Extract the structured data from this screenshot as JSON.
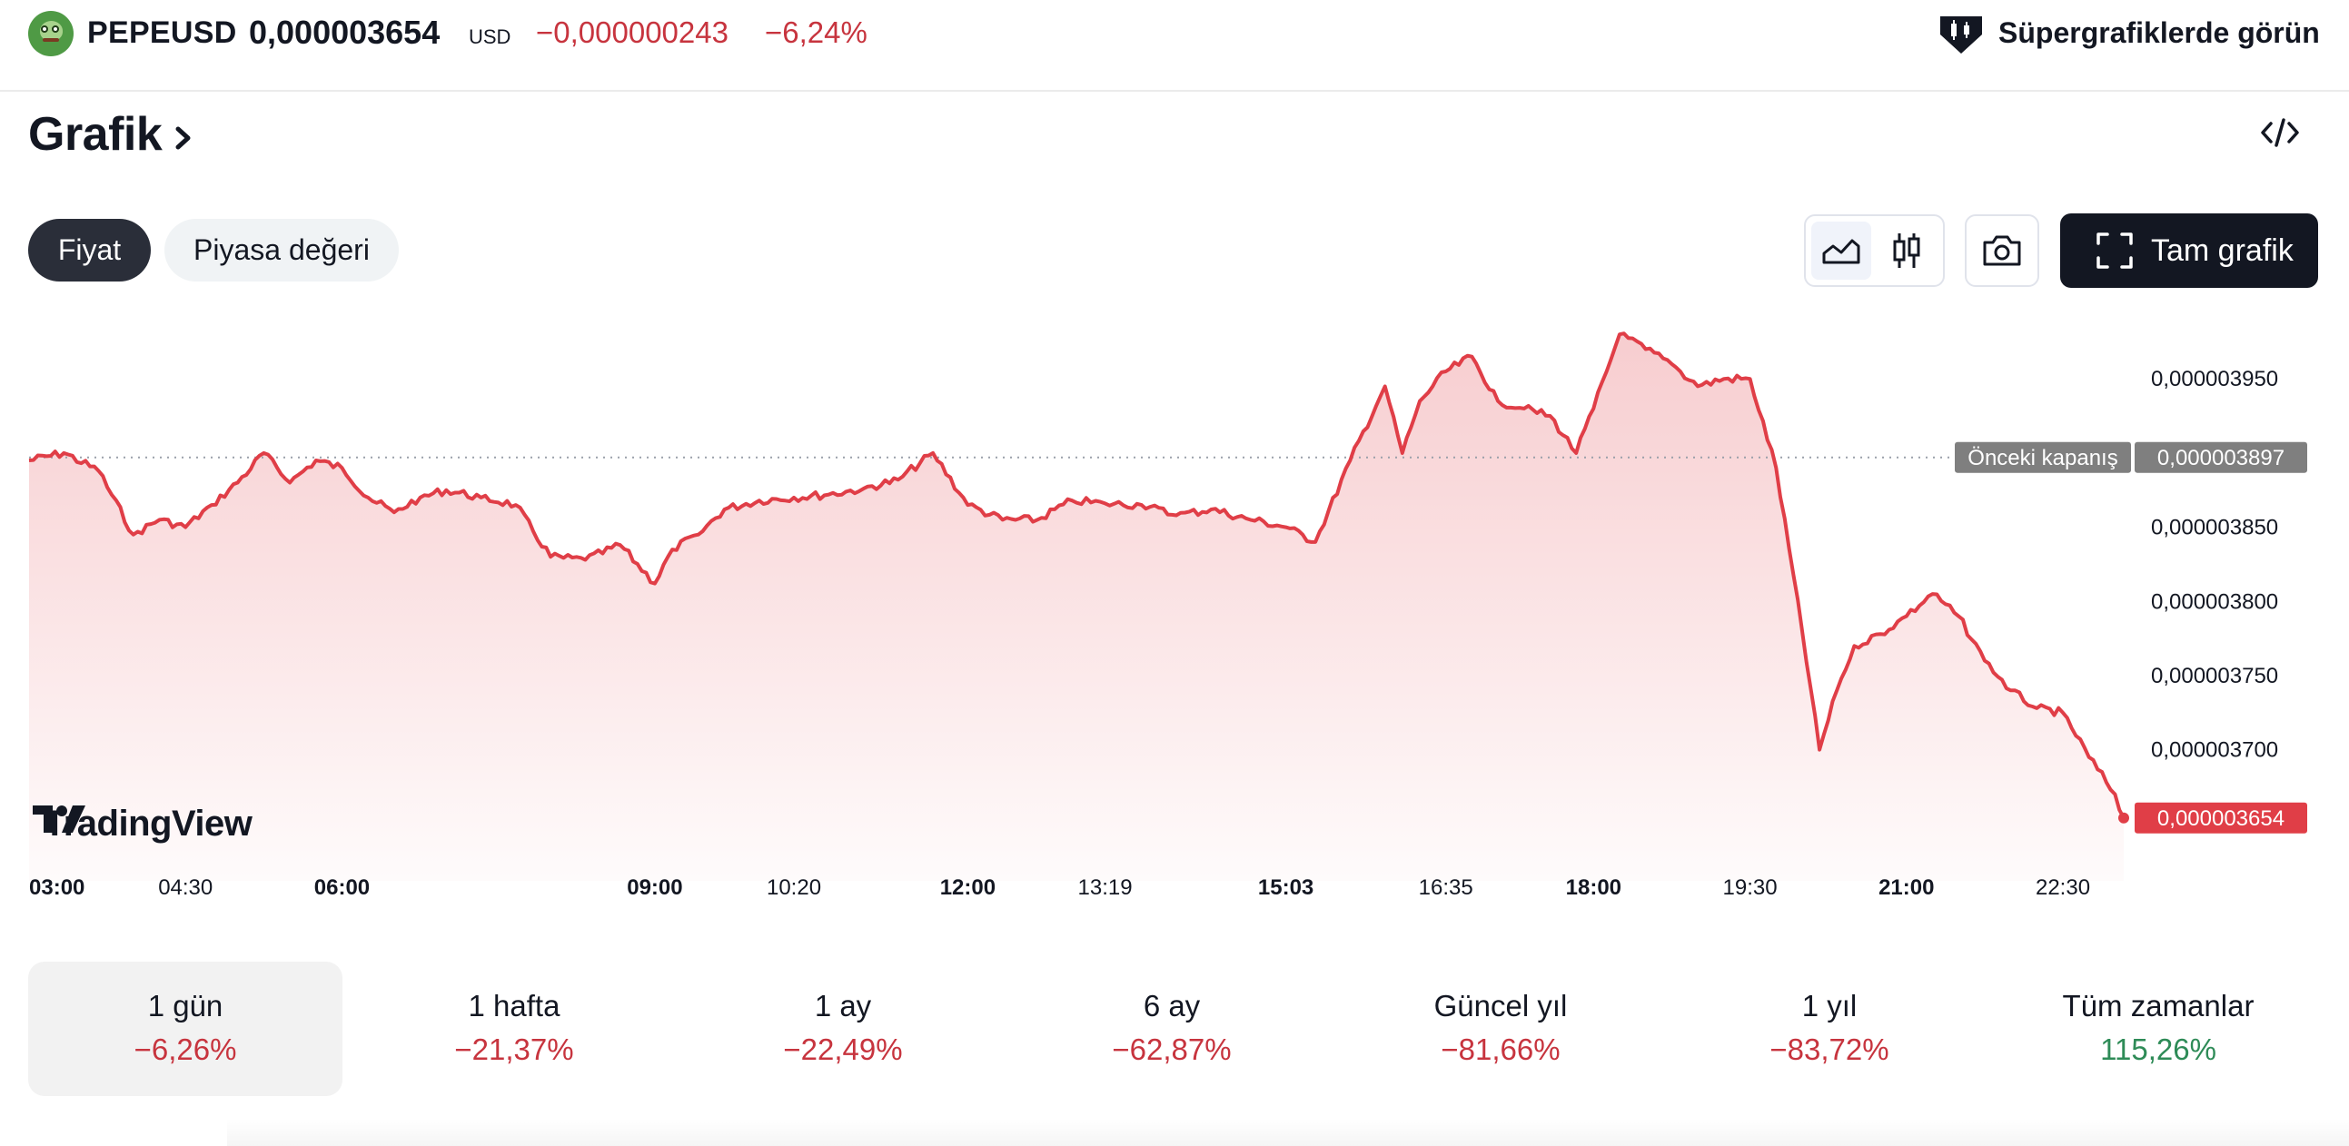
{
  "header": {
    "symbol": "PEPEUSD",
    "price": "0,000003654",
    "currency": "USD",
    "change": "−0,000000243",
    "change_percent": "−6,24%",
    "logo_icon": "pepe-coin-icon",
    "supercharts_icon": "supercharts-icon",
    "supercharts_label": "Süpergrafiklerde görün"
  },
  "section": {
    "title": "Grafik",
    "title_icon": "chevron-right-icon",
    "embed_icon": "embed-code-icon"
  },
  "toggles": [
    {
      "label": "Fiyat",
      "active": true
    },
    {
      "label": "Piyasa değeri",
      "active": false
    }
  ],
  "toolbar": {
    "area_chart_icon": "area-chart-icon",
    "candlestick_icon": "candlestick-icon",
    "camera_icon": "camera-icon",
    "fullscreen_icon": "fullscreen-icon",
    "full_chart_label": "Tam grafik"
  },
  "watermark": "TradingView",
  "colors": {
    "line": "#e03e47",
    "negative": "#c7343e",
    "positive": "#2e8b57",
    "prev_close_badge": "#7f7f7f",
    "price_badge": "#e03e47"
  },
  "chart_data": {
    "type": "area",
    "y_axis": {
      "ticks": [
        "0,000003950",
        "0,000003850",
        "0,000003800",
        "0,000003750",
        "0,000003700"
      ],
      "tick_values": [
        3.95e-06,
        3.85e-06,
        3.8e-06,
        3.75e-06,
        3.7e-06
      ],
      "range": [
        3.63e-06,
        3.985e-06
      ]
    },
    "x_axis": {
      "ticks": [
        {
          "label": "03:00",
          "bold": true
        },
        {
          "label": "04:30",
          "bold": false
        },
        {
          "label": "06:00",
          "bold": true
        },
        {
          "label": "09:00",
          "bold": true
        },
        {
          "label": "10:20",
          "bold": false
        },
        {
          "label": "12:00",
          "bold": true
        },
        {
          "label": "13:19",
          "bold": false
        },
        {
          "label": "15:03",
          "bold": true
        },
        {
          "label": "16:35",
          "bold": false
        },
        {
          "label": "18:00",
          "bold": true
        },
        {
          "label": "19:30",
          "bold": false
        },
        {
          "label": "21:00",
          "bold": true
        },
        {
          "label": "22:30",
          "bold": false
        }
      ],
      "range": [
        "03:00",
        "23:05"
      ]
    },
    "previous_close": {
      "label": "Önceki kapanış",
      "value": 3.897e-06,
      "value_text": "0,000003897"
    },
    "last_price": {
      "value": 3.654e-06,
      "value_text": "0,000003654"
    },
    "series": [
      {
        "x": [
          "03:00",
          "03:20",
          "03:40",
          "04:00",
          "04:15",
          "04:30",
          "04:45",
          "05:00",
          "05:15",
          "05:30",
          "05:45",
          "06:00",
          "06:15",
          "06:30",
          "06:45",
          "07:00",
          "07:20",
          "07:40",
          "08:00",
          "08:20",
          "08:40",
          "09:00",
          "09:10",
          "09:25",
          "09:40",
          "10:00",
          "10:20",
          "10:40",
          "11:00",
          "11:20",
          "11:40",
          "12:00",
          "12:20",
          "12:40",
          "13:00",
          "13:19",
          "13:40",
          "14:00",
          "14:20",
          "14:40",
          "15:03",
          "15:20",
          "15:40",
          "16:00",
          "16:10",
          "16:20",
          "16:35",
          "16:50",
          "17:05",
          "17:20",
          "17:35",
          "17:50",
          "18:00",
          "18:15",
          "18:30",
          "18:45",
          "19:00",
          "19:15",
          "19:30",
          "19:45",
          "20:00",
          "20:10",
          "20:20",
          "20:30",
          "20:45",
          "21:00",
          "21:15",
          "21:30",
          "21:45",
          "22:00",
          "22:15",
          "22:30",
          "22:45",
          "23:00",
          "23:05"
        ],
        "y": [
          3.895e-06,
          3.9e-06,
          3.888e-06,
          3.845e-06,
          3.855e-06,
          3.85e-06,
          3.865e-06,
          3.88e-06,
          3.9e-06,
          3.88e-06,
          3.895e-06,
          3.89e-06,
          3.87e-06,
          3.86e-06,
          3.87e-06,
          3.875e-06,
          3.87e-06,
          3.865e-06,
          3.83e-06,
          3.828e-06,
          3.838e-06,
          3.812e-06,
          3.835e-06,
          3.845e-06,
          3.862e-06,
          3.868e-06,
          3.87e-06,
          3.872e-06,
          3.876e-06,
          3.882e-06,
          3.9e-06,
          3.865e-06,
          3.855e-06,
          3.855e-06,
          3.868e-06,
          3.866e-06,
          3.865e-06,
          3.858e-06,
          3.862e-06,
          3.856e-06,
          3.85e-06,
          3.84e-06,
          3.895e-06,
          3.945e-06,
          3.9e-06,
          3.935e-06,
          3.955e-06,
          3.965e-06,
          3.935e-06,
          3.93e-06,
          3.925e-06,
          3.9e-06,
          3.93e-06,
          3.98e-06,
          3.97e-06,
          3.96e-06,
          3.945e-06,
          3.95e-06,
          3.95e-06,
          3.89e-06,
          3.78e-06,
          3.7e-06,
          3.74e-06,
          3.77e-06,
          3.778e-06,
          3.79e-06,
          3.805e-06,
          3.79e-06,
          3.76e-06,
          3.74e-06,
          3.728e-06,
          3.725e-06,
          3.695e-06,
          3.67e-06,
          3.654e-06
        ]
      }
    ]
  },
  "performance": [
    {
      "label": "1 gün",
      "value": "−6,26%",
      "trend": "neg",
      "active": true
    },
    {
      "label": "1 hafta",
      "value": "−21,37%",
      "trend": "neg",
      "active": false
    },
    {
      "label": "1 ay",
      "value": "−22,49%",
      "trend": "neg",
      "active": false
    },
    {
      "label": "6 ay",
      "value": "−62,87%",
      "trend": "neg",
      "active": false
    },
    {
      "label": "Güncel yıl",
      "value": "−81,66%",
      "trend": "neg",
      "active": false
    },
    {
      "label": "1 yıl",
      "value": "−83,72%",
      "trend": "neg",
      "active": false
    },
    {
      "label": "Tüm zamanlar",
      "value": "115,26%",
      "trend": "pos",
      "active": false
    }
  ]
}
